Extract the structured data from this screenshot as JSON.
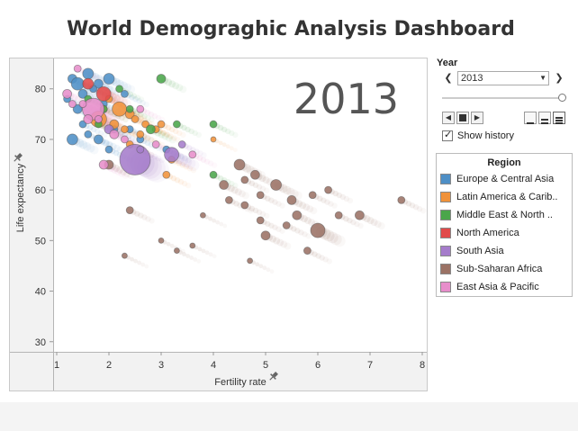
{
  "title": "World Demograghic Analysis Dashboard",
  "controls": {
    "year_label": "Year",
    "year_value": "2013",
    "show_history_label": "Show history",
    "show_history_checked": true,
    "prev_icon": "chevron-left-icon",
    "next_icon": "chevron-right-icon",
    "dropdown_icon": "chevron-down-icon",
    "slider_fraction": 1.0
  },
  "legend": {
    "title": "Region",
    "items": [
      {
        "label": "Europe & Central Asia",
        "color": "#4e8fc6"
      },
      {
        "label": "Latin America & Carib..",
        "color": "#f0923a"
      },
      {
        "label": "Middle East & North ..",
        "color": "#4aa64a"
      },
      {
        "label": "North America",
        "color": "#e14a4a"
      },
      {
        "label": "South Asia",
        "color": "#a57ccb"
      },
      {
        "label": "Sub-Saharan Africa",
        "color": "#9b7265"
      },
      {
        "label": "East Asia & Pacific",
        "color": "#e78ecb"
      }
    ]
  },
  "chart_data": {
    "type": "scatter",
    "year_watermark": "2013",
    "xlabel": "Fertility rate",
    "ylabel": "Life expectancy",
    "xlim": [
      1,
      8
    ],
    "ylim": [
      28,
      86
    ],
    "xticks": [
      "1",
      "2",
      "3",
      "4",
      "5",
      "6",
      "7",
      "8"
    ],
    "yticks": [
      "30",
      "40",
      "50",
      "60",
      "70",
      "80"
    ],
    "grid": false,
    "legend_position": "right",
    "series": [
      {
        "name": "Europe & Central Asia",
        "color": "#4e8fc6",
        "points": [
          [
            1.3,
            82,
            5
          ],
          [
            1.4,
            81,
            7
          ],
          [
            1.6,
            83,
            6
          ],
          [
            1.8,
            81,
            5
          ],
          [
            2.0,
            82,
            6
          ],
          [
            1.5,
            79,
            5
          ],
          [
            1.7,
            80,
            4
          ],
          [
            1.4,
            76,
            5
          ],
          [
            1.6,
            71,
            4
          ],
          [
            1.3,
            70,
            6
          ],
          [
            1.8,
            70,
            5
          ],
          [
            2.1,
            72,
            4
          ],
          [
            1.5,
            73,
            4
          ],
          [
            2.4,
            72,
            4
          ],
          [
            1.9,
            77,
            4
          ],
          [
            2.3,
            79,
            4
          ],
          [
            2.0,
            68,
            4
          ],
          [
            3.1,
            68,
            4
          ],
          [
            1.2,
            78,
            4
          ],
          [
            2.6,
            70,
            4
          ]
        ]
      },
      {
        "name": "Latin America & Carib..",
        "color": "#f0923a",
        "points": [
          [
            1.8,
            74,
            9
          ],
          [
            2.2,
            76,
            8
          ],
          [
            2.4,
            75,
            5
          ],
          [
            2.1,
            73,
            5
          ],
          [
            2.3,
            72,
            4
          ],
          [
            2.5,
            74,
            4
          ],
          [
            2.7,
            73,
            4
          ],
          [
            2.9,
            72,
            4
          ],
          [
            3.2,
            66,
            4
          ],
          [
            3.1,
            63,
            4
          ],
          [
            2.6,
            71,
            4
          ],
          [
            1.9,
            76,
            4
          ],
          [
            2.0,
            78,
            4
          ],
          [
            2.4,
            69,
            4
          ],
          [
            3.0,
            73,
            4
          ],
          [
            4.0,
            70,
            3
          ]
        ]
      },
      {
        "name": "Middle East & North ..",
        "color": "#4aa64a",
        "points": [
          [
            1.6,
            78,
            4
          ],
          [
            1.9,
            76,
            4
          ],
          [
            2.2,
            80,
            4
          ],
          [
            2.8,
            72,
            5
          ],
          [
            3.0,
            82,
            5
          ],
          [
            3.3,
            73,
            4
          ],
          [
            2.4,
            76,
            4
          ],
          [
            4.0,
            63,
            4
          ],
          [
            4.0,
            73,
            4
          ],
          [
            1.8,
            73,
            4
          ]
        ]
      },
      {
        "name": "North America",
        "color": "#e14a4a",
        "points": [
          [
            1.9,
            79,
            8
          ],
          [
            1.6,
            81,
            6
          ]
        ]
      },
      {
        "name": "South Asia",
        "color": "#a57ccb",
        "points": [
          [
            2.5,
            66,
            17
          ],
          [
            3.2,
            67,
            8
          ],
          [
            2.0,
            72,
            5
          ],
          [
            1.8,
            74,
            4
          ],
          [
            2.6,
            68,
            4
          ],
          [
            3.4,
            69,
            4
          ]
        ]
      },
      {
        "name": "Sub-Saharan Africa",
        "color": "#9b7265",
        "points": [
          [
            4.5,
            65,
            6
          ],
          [
            4.8,
            63,
            5
          ],
          [
            5.2,
            61,
            6
          ],
          [
            5.5,
            58,
            5
          ],
          [
            6.0,
            52,
            8
          ],
          [
            6.8,
            55,
            5
          ],
          [
            7.6,
            58,
            4
          ],
          [
            5.6,
            55,
            5
          ],
          [
            4.6,
            57,
            4
          ],
          [
            5.0,
            51,
            5
          ],
          [
            5.8,
            48,
            4
          ],
          [
            4.2,
            61,
            5
          ],
          [
            4.9,
            59,
            4
          ],
          [
            5.4,
            53,
            4
          ],
          [
            6.4,
            55,
            4
          ],
          [
            6.2,
            60,
            4
          ],
          [
            4.7,
            46,
            3
          ],
          [
            3.3,
            48,
            3
          ],
          [
            2.4,
            56,
            4
          ],
          [
            2.0,
            65,
            5
          ],
          [
            4.3,
            58,
            4
          ],
          [
            4.9,
            54,
            4
          ],
          [
            2.3,
            47,
            3
          ],
          [
            3.0,
            50,
            3
          ],
          [
            3.6,
            49,
            3
          ],
          [
            5.9,
            59,
            4
          ],
          [
            4.6,
            62,
            4
          ],
          [
            3.8,
            55,
            3
          ]
        ]
      },
      {
        "name": "East Asia & Pacific",
        "color": "#e78ecb",
        "points": [
          [
            1.7,
            76,
            12
          ],
          [
            1.4,
            84,
            4
          ],
          [
            1.2,
            79,
            5
          ],
          [
            1.6,
            74,
            5
          ],
          [
            1.8,
            74,
            4
          ],
          [
            2.1,
            71,
            5
          ],
          [
            2.3,
            70,
            4
          ],
          [
            2.9,
            69,
            4
          ],
          [
            1.5,
            77,
            4
          ],
          [
            2.6,
            76,
            4
          ],
          [
            1.9,
            65,
            5
          ],
          [
            3.6,
            67,
            4
          ],
          [
            1.3,
            77,
            4
          ]
        ]
      }
    ]
  }
}
